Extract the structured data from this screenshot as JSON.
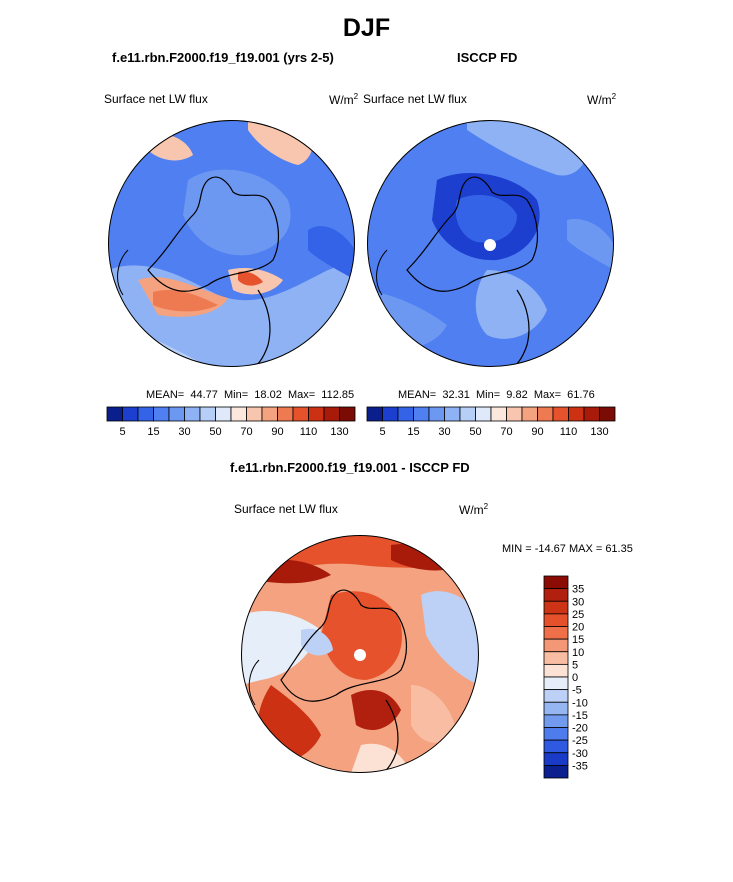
{
  "title": "DJF",
  "left_panel": {
    "case_title": "f.e11.rbn.F2000.f19_f19.001 (yrs 2-5)",
    "variable": "Surface net LW flux",
    "units": "W/m",
    "units_exp": "2",
    "stats": {
      "mean_label": "MEAN=",
      "mean": "44.77",
      "min_label": "Min=",
      "min": "18.02",
      "max_label": "Max=",
      "max": "112.85"
    }
  },
  "right_panel": {
    "case_title": "ISCCP FD",
    "variable": "Surface net LW flux",
    "units": "W/m",
    "units_exp": "2",
    "stats": {
      "mean_label": "MEAN=",
      "mean": "32.31",
      "min_label": "Min=",
      "min": "9.82",
      "max_label": "Max=",
      "max": "61.76"
    }
  },
  "diff_panel": {
    "case_title": "f.e11.rbn.F2000.f19_f19.001 - ISCCP FD",
    "variable": "Surface net LW flux",
    "units": "W/m",
    "units_exp": "2",
    "minmax": "MIN = -14.67 MAX = 61.35"
  },
  "chart_data": [
    {
      "type": "heatmap",
      "projection": "north polar stereographic",
      "title": "f.e11.rbn.F2000.f19_f19.001 (yrs 2-5)",
      "variable": "Surface net LW flux",
      "units": "W/m2",
      "mean": 44.77,
      "min": 18.02,
      "max": 112.85,
      "colorbar_ticks": [
        "5",
        "15",
        "30",
        "50",
        "70",
        "90",
        "110",
        "130"
      ],
      "colorbar_colors": [
        "#0a1e8c",
        "#1c3fcf",
        "#3563e8",
        "#4f7ff0",
        "#6d98f2",
        "#8eb2f4",
        "#b6cff7",
        "#dfe9f9",
        "#fbe7dc",
        "#f8c6ae",
        "#f4a27f",
        "#ee7a52",
        "#e5522c",
        "#cc3113",
        "#a81b0a",
        "#7a0c05"
      ]
    },
    {
      "type": "heatmap",
      "projection": "north polar stereographic",
      "title": "ISCCP FD",
      "variable": "Surface net LW flux",
      "units": "W/m2",
      "mean": 32.31,
      "min": 9.82,
      "max": 61.76,
      "colorbar_ticks": [
        "5",
        "15",
        "30",
        "50",
        "70",
        "90",
        "110",
        "130"
      ],
      "colorbar_colors": [
        "#0a1e8c",
        "#1c3fcf",
        "#3563e8",
        "#4f7ff0",
        "#6d98f2",
        "#8eb2f4",
        "#b6cff7",
        "#dfe9f9",
        "#fbe7dc",
        "#f8c6ae",
        "#f4a27f",
        "#ee7a52",
        "#e5522c",
        "#cc3113",
        "#a81b0a",
        "#7a0c05"
      ]
    },
    {
      "type": "heatmap",
      "projection": "north polar stereographic",
      "title": "f.e11.rbn.F2000.f19_f19.001 - ISCCP FD",
      "variable": "Surface net LW flux",
      "units": "W/m2",
      "min": -14.67,
      "max": 61.35,
      "colorbar_ticks": [
        "35",
        "30",
        "25",
        "20",
        "15",
        "10",
        "5",
        "0",
        "-5",
        "-10",
        "-15",
        "-20",
        "-25",
        "-30",
        "-35"
      ],
      "colorbar_colors": [
        "#8b0c05",
        "#b1200e",
        "#cc3415",
        "#e5512b",
        "#ef7048",
        "#f49776",
        "#f8bda3",
        "#fbe2d4",
        "#e6eef9",
        "#bcd1f5",
        "#96b6f2",
        "#729bef",
        "#4f7cec",
        "#2f59e0",
        "#1a3bc7",
        "#0b1f8f"
      ]
    }
  ]
}
